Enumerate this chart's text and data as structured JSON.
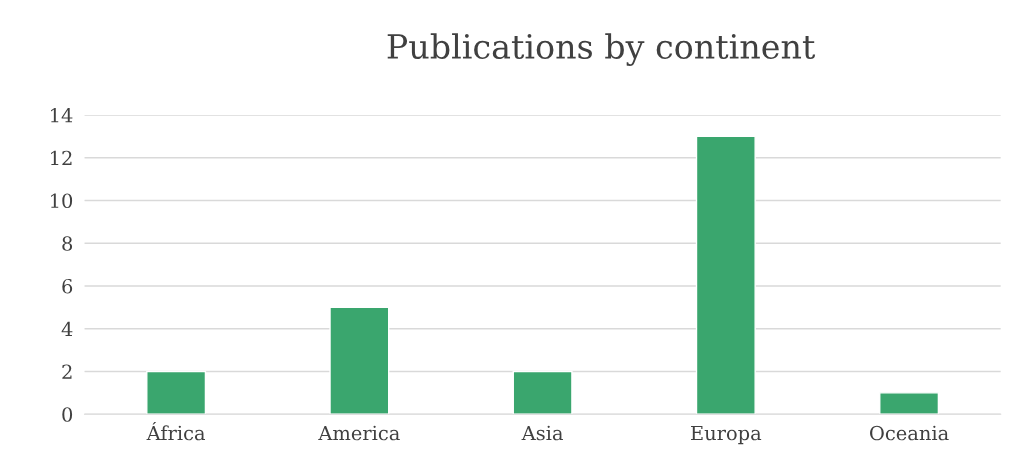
{
  "chart_data": {
    "type": "bar",
    "title": "Publications by continent",
    "categories": [
      "África",
      "America",
      "Asia",
      "Europa",
      "Oceania"
    ],
    "values": [
      2,
      5,
      2,
      13,
      1
    ],
    "color": "#3aa66e",
    "ylim": [
      0,
      14
    ],
    "yticks": [
      0,
      2,
      4,
      6,
      8,
      10,
      12,
      14
    ],
    "grid": "y",
    "legend": false
  }
}
